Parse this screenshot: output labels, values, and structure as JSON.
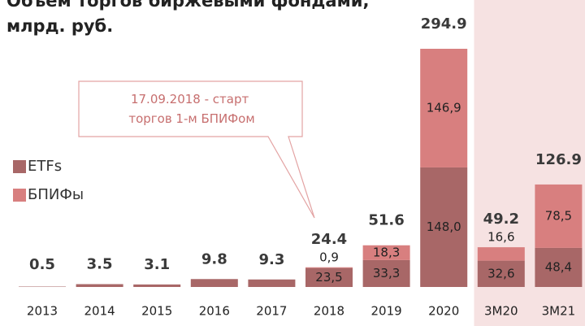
{
  "chart_data": {
    "type": "stacked_bar",
    "title": "Объем торгов биржевыми фондами, млрд. руб.",
    "annotation": "17.09.2018 - старт торгов 1-м БПИФом",
    "categories": [
      "2013",
      "2014",
      "2015",
      "2016",
      "2017",
      "2018",
      "2019",
      "2020",
      "3М20",
      "3М21"
    ],
    "totals": [
      0.5,
      3.5,
      3.1,
      9.8,
      9.3,
      24.4,
      51.6,
      294.9,
      49.2,
      126.9
    ],
    "series": [
      {
        "name": "ETFs",
        "color": "#a86767",
        "values": [
          0.5,
          3.5,
          3.1,
          9.8,
          9.3,
          23.5,
          33.3,
          148.0,
          32.6,
          48.4
        ],
        "value_labels": [
          null,
          null,
          null,
          null,
          null,
          "23,5",
          "33,3",
          "148,0",
          "32,6",
          "48,4"
        ]
      },
      {
        "name": "БПИФы",
        "color": "#d87f7f",
        "values": [
          null,
          null,
          null,
          null,
          null,
          0.9,
          18.3,
          146.9,
          16.6,
          78.5
        ],
        "value_labels": [
          null,
          null,
          null,
          null,
          null,
          "0,9",
          "18,3",
          "146,9",
          "16,6",
          "78,5"
        ]
      }
    ],
    "highlight_color": "#f6e2e2",
    "highlight_from": "3М20",
    "legend": "left"
  }
}
